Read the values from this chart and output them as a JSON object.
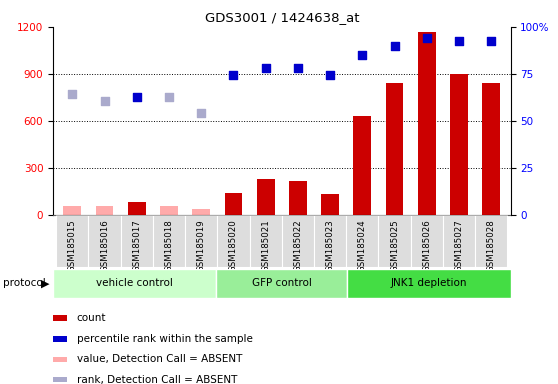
{
  "title": "GDS3001 / 1424638_at",
  "samples": [
    "GSM185015",
    "GSM185016",
    "GSM185017",
    "GSM185018",
    "GSM185019",
    "GSM185020",
    "GSM185021",
    "GSM185022",
    "GSM185023",
    "GSM185024",
    "GSM185025",
    "GSM185026",
    "GSM185027",
    "GSM185028"
  ],
  "count_values": [
    55,
    55,
    80,
    55,
    40,
    140,
    230,
    220,
    135,
    630,
    840,
    1170,
    900,
    840
  ],
  "count_absent": [
    true,
    true,
    false,
    true,
    true,
    false,
    false,
    false,
    false,
    false,
    false,
    false,
    false,
    false
  ],
  "percentile_values": [
    770,
    730,
    750,
    750,
    650,
    890,
    940,
    940,
    890,
    1020,
    1080,
    1130,
    1110,
    1110
  ],
  "percentile_absent": [
    true,
    true,
    false,
    true,
    true,
    false,
    false,
    false,
    false,
    false,
    false,
    false,
    false,
    false
  ],
  "protocols": [
    {
      "label": "vehicle control",
      "start": 0,
      "end": 5,
      "color": "#ccffcc"
    },
    {
      "label": "GFP control",
      "start": 5,
      "end": 9,
      "color": "#99ee99"
    },
    {
      "label": "JNK1 depletion",
      "start": 9,
      "end": 14,
      "color": "#44dd44"
    }
  ],
  "ylim_left": [
    0,
    1200
  ],
  "yticks_left": [
    0,
    300,
    600,
    900,
    1200
  ],
  "yticks_right": [
    0,
    25,
    50,
    75,
    100
  ],
  "bar_color_present": "#cc0000",
  "bar_color_absent": "#ffaaaa",
  "scatter_color_present": "#0000cc",
  "scatter_color_absent": "#aaaacc",
  "sample_bg": "#dddddd",
  "legend_labels": [
    "count",
    "percentile rank within the sample",
    "value, Detection Call = ABSENT",
    "rank, Detection Call = ABSENT"
  ],
  "legend_colors": [
    "#cc0000",
    "#0000cc",
    "#ffaaaa",
    "#aaaacc"
  ]
}
